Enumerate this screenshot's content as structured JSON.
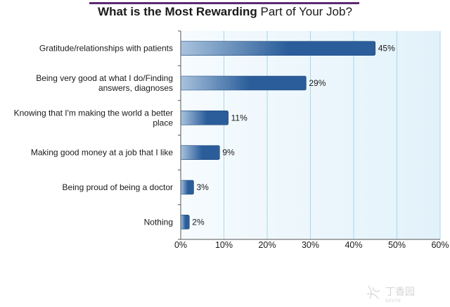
{
  "chart_data": {
    "type": "bar",
    "orientation": "horizontal",
    "title_bold": "What is the Most Rewarding",
    "title_rest": "Part of Your Job?",
    "categories": [
      [
        "Gratitude/relationships with patients"
      ],
      [
        "Being very good at what I do/Finding",
        "answers, diagnoses"
      ],
      [
        "Knowing that I'm making the world a better",
        "place"
      ],
      [
        "Making good money at a job that I like"
      ],
      [
        "Being proud of being a doctor"
      ],
      [
        "Nothing"
      ]
    ],
    "values": [
      45,
      29,
      11,
      9,
      3,
      2
    ],
    "value_labels": [
      "45%",
      "29%",
      "11%",
      "9%",
      "3%",
      "2%"
    ],
    "xlim": [
      0,
      60
    ],
    "xticks": [
      0,
      10,
      20,
      30,
      40,
      50,
      60
    ],
    "xtick_labels": [
      "0%",
      "10%",
      "20%",
      "30%",
      "40%",
      "50%",
      "60%"
    ],
    "grid": true,
    "colors": {
      "bar_dark": "#2a5d9a",
      "bar_light": "#a9c3dd",
      "plot_bg": "#e8f4fb",
      "grid": "#a8d8ea",
      "title_rule": "#5a2a73"
    }
  },
  "watermark": {
    "icon": "dxy-logo-icon",
    "text": "丁香园",
    "sub": "DXY.CN"
  }
}
